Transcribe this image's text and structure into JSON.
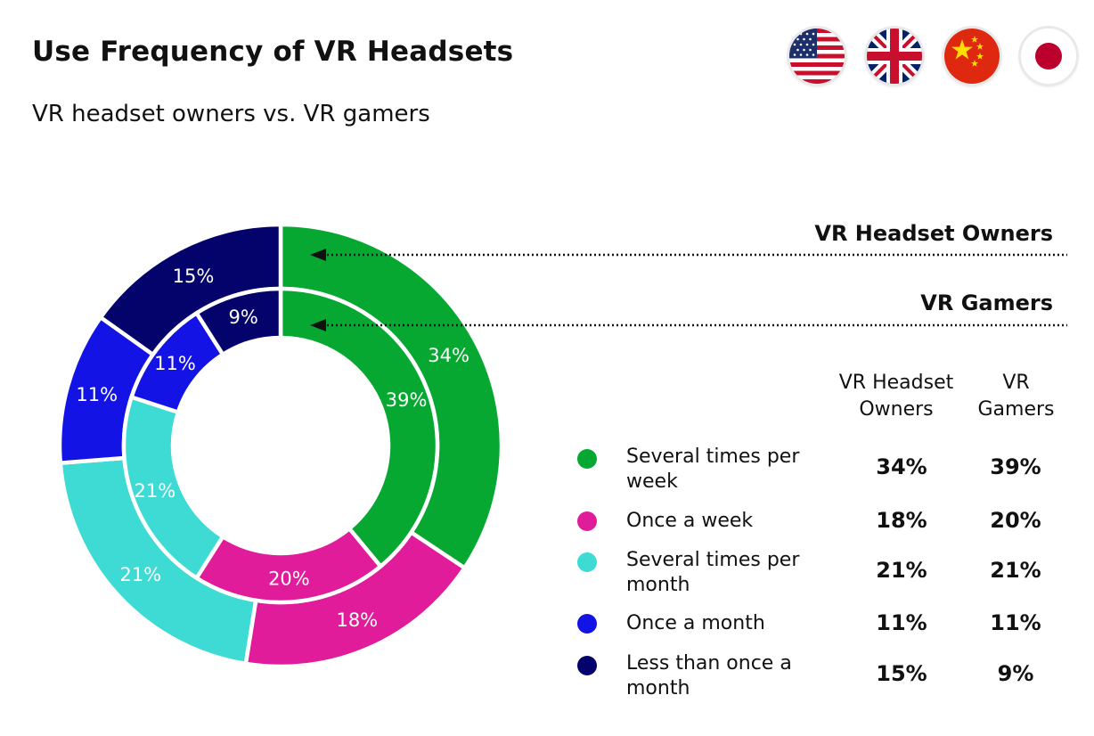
{
  "header": {
    "title": "Use Frequency of VR Headsets",
    "subtitle": "VR headset owners vs. VR gamers"
  },
  "flags": [
    {
      "icon": "us-flag-icon"
    },
    {
      "icon": "uk-flag-icon"
    },
    {
      "icon": "china-flag-icon"
    },
    {
      "icon": "japan-flag-icon"
    }
  ],
  "ring_labels": {
    "outer": "VR Headset Owners",
    "inner": "VR Gamers"
  },
  "table": {
    "col_headers": [
      "VR Headset Owners",
      "VR Gamers"
    ],
    "rows": [
      {
        "label": "Several times per week",
        "owners": "34%",
        "gamers": "39%"
      },
      {
        "label": "Once a week",
        "owners": "18%",
        "gamers": "20%"
      },
      {
        "label": "Several times per month",
        "owners": "21%",
        "gamers": "21%"
      },
      {
        "label": "Once a month",
        "owners": "11%",
        "gamers": "11%"
      },
      {
        "label": "Less than once a month",
        "owners": "15%",
        "gamers": "9%"
      }
    ]
  },
  "chart_data": {
    "type": "pie",
    "subtype": "nested-donut",
    "title": "Use Frequency of VR Headsets",
    "subtitle": "VR headset owners vs. VR gamers",
    "categories": [
      "Several times per week",
      "Once a week",
      "Several times per month",
      "Once a month",
      "Less than once a month"
    ],
    "colors": [
      "#06a832",
      "#e01c9a",
      "#3ddbd3",
      "#1313e6",
      "#03036b"
    ],
    "series": [
      {
        "name": "VR Headset Owners",
        "ring": "outer",
        "values": [
          34,
          18,
          21,
          11,
          15
        ],
        "labels": [
          "34%",
          "18%",
          "21%",
          "11%",
          "15%"
        ]
      },
      {
        "name": "VR Gamers",
        "ring": "inner",
        "values": [
          39,
          20,
          21,
          11,
          9
        ],
        "labels": [
          "39%",
          "20%",
          "21%",
          "11%",
          "9%"
        ]
      }
    ],
    "legend_position": "right"
  }
}
